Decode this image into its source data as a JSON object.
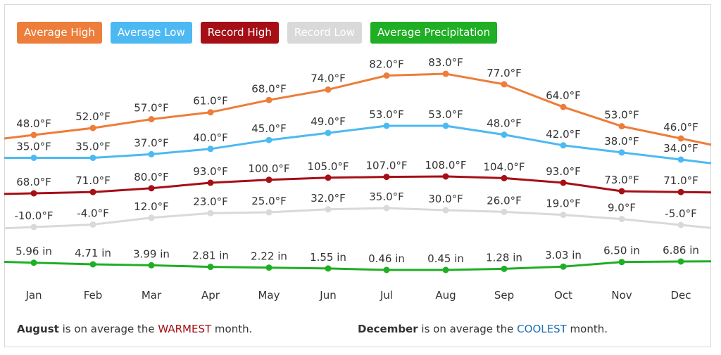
{
  "legend": [
    {
      "label": "Average High",
      "color": "#ed7d3a"
    },
    {
      "label": "Average Low",
      "color": "#4db9f2"
    },
    {
      "label": "Record High",
      "color": "#a50f15"
    },
    {
      "label": "Record Low",
      "color": "#d9d9d9"
    },
    {
      "label": "Average Precipitation",
      "color": "#1fae24"
    }
  ],
  "chart_data": {
    "type": "line",
    "categories": [
      "Jan",
      "Feb",
      "Mar",
      "Apr",
      "May",
      "Jun",
      "Jul",
      "Aug",
      "Sep",
      "Oct",
      "Nov",
      "Dec"
    ],
    "series": [
      {
        "name": "Average High",
        "color": "#ed7d3a",
        "values": [
          48.0,
          52.0,
          57.0,
          61.0,
          68.0,
          74.0,
          82.0,
          83.0,
          77.0,
          64.0,
          53.0,
          46.0
        ],
        "labels": [
          "48.0°F",
          "52.0°F",
          "57.0°F",
          "61.0°F",
          "68.0°F",
          "74.0°F",
          "82.0°F",
          "83.0°F",
          "77.0°F",
          "64.0°F",
          "53.0°F",
          "46.0°F"
        ]
      },
      {
        "name": "Average Low",
        "color": "#4db9f2",
        "values": [
          35.0,
          35.0,
          37.0,
          40.0,
          45.0,
          49.0,
          53.0,
          53.0,
          48.0,
          42.0,
          38.0,
          34.0
        ],
        "labels": [
          "35.0°F",
          "35.0°F",
          "37.0°F",
          "40.0°F",
          "45.0°F",
          "49.0°F",
          "53.0°F",
          "53.0°F",
          "48.0°F",
          "42.0°F",
          "38.0°F",
          "34.0°F"
        ]
      },
      {
        "name": "Record High",
        "color": "#a50f15",
        "values": [
          68.0,
          71.0,
          80.0,
          93.0,
          100.0,
          105.0,
          107.0,
          108.0,
          104.0,
          93.0,
          73.0,
          71.0
        ],
        "labels": [
          "68.0°F",
          "71.0°F",
          "80.0°F",
          "93.0°F",
          "100.0°F",
          "105.0°F",
          "107.0°F",
          "108.0°F",
          "104.0°F",
          "93.0°F",
          "73.0°F",
          "71.0°F"
        ]
      },
      {
        "name": "Record Low",
        "color": "#d9d9d9",
        "values": [
          -10.0,
          -4.0,
          12.0,
          23.0,
          25.0,
          32.0,
          35.0,
          30.0,
          26.0,
          19.0,
          9.0,
          -5.0
        ],
        "labels": [
          "-10.0°F",
          "-4.0°F",
          "12.0°F",
          "23.0°F",
          "25.0°F",
          "32.0°F",
          "35.0°F",
          "30.0°F",
          "26.0°F",
          "19.0°F",
          "9.0°F",
          "-5.0°F"
        ]
      },
      {
        "name": "Average Precipitation",
        "color": "#1fae24",
        "values": [
          5.96,
          4.71,
          3.99,
          2.81,
          2.22,
          1.55,
          0.46,
          0.45,
          1.28,
          3.03,
          6.5,
          6.86
        ],
        "labels": [
          "5.96 in",
          "4.71 in",
          "3.99 in",
          "2.81 in",
          "2.22 in",
          "1.55 in",
          "0.46 in",
          "0.45 in",
          "1.28 in",
          "3.03 in",
          "6.50 in",
          "6.86 in"
        ]
      }
    ]
  },
  "summary": {
    "warm_month": "August",
    "warm_pre": " is on average the ",
    "warm_word": "WARMEST",
    "warm_post": " month.",
    "cool_month": "December",
    "cool_pre": " is on average the ",
    "cool_word": "COOLEST",
    "cool_post": " month."
  }
}
